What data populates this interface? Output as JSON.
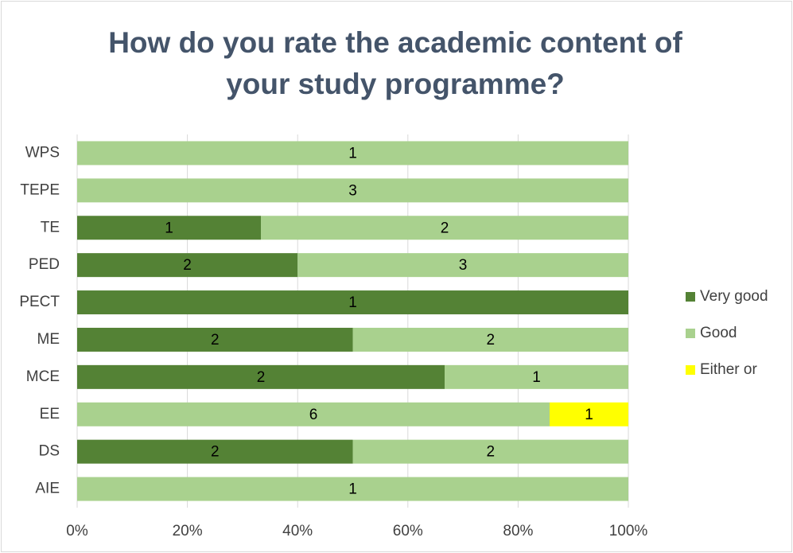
{
  "chart_data": {
    "type": "bar",
    "orientation": "horizontal",
    "percent_stacked": true,
    "title": "How do you rate the academic content of your study programme?",
    "categories": [
      "WPS",
      "TEPE",
      "TE",
      "PED",
      "PECT",
      "ME",
      "MCE",
      "EE",
      "DS",
      "AIE"
    ],
    "series": [
      {
        "name": "Very good",
        "color": "#548235",
        "values": [
          null,
          null,
          1,
          2,
          1,
          2,
          2,
          null,
          2,
          null
        ]
      },
      {
        "name": "Good",
        "color": "#a9d18e",
        "values": [
          1,
          3,
          2,
          3,
          null,
          2,
          1,
          6,
          2,
          1
        ]
      },
      {
        "name": "Either or",
        "color": "#ffff00",
        "values": [
          null,
          null,
          null,
          null,
          null,
          null,
          null,
          1,
          null,
          null
        ]
      }
    ],
    "xlim": [
      0,
      100
    ],
    "xticks": [
      {
        "value": 0,
        "label": "0%"
      },
      {
        "value": 20,
        "label": "20%"
      },
      {
        "value": 40,
        "label": "40%"
      },
      {
        "value": 60,
        "label": "60%"
      },
      {
        "value": 80,
        "label": "80%"
      },
      {
        "value": 100,
        "label": "100%"
      }
    ],
    "grid": true,
    "legend": "right"
  }
}
